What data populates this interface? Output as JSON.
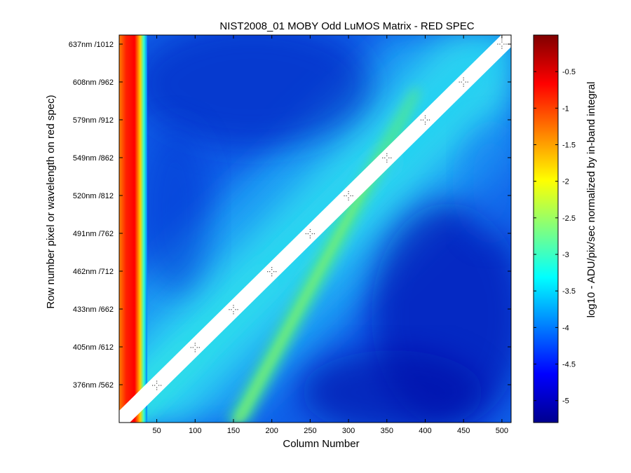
{
  "chart_data": {
    "type": "heatmap",
    "title": "NIST2008_01  MOBY Odd LuMOS Matrix - RED SPEC",
    "xlabel": "Column Number",
    "ylabel": "Row number pixel or wavelength on red spec)",
    "colorbar_label": "log10 - ADU/pix/sec normalized by in-band integral",
    "colormap": "jet",
    "xlim": [
      1,
      512
    ],
    "ylim": [
      512,
      1024
    ],
    "clim": [
      -5.3,
      0
    ],
    "x_ticks": [
      50,
      100,
      150,
      200,
      250,
      300,
      350,
      400,
      450,
      500
    ],
    "y_ticks": [
      {
        "value": 562,
        "label": "376nm /562"
      },
      {
        "value": 612,
        "label": "405nm /612"
      },
      {
        "value": 662,
        "label": "433nm /662"
      },
      {
        "value": 712,
        "label": "462nm /712"
      },
      {
        "value": 762,
        "label": "491nm /762"
      },
      {
        "value": 812,
        "label": "520nm /812"
      },
      {
        "value": 862,
        "label": "549nm /862"
      },
      {
        "value": 912,
        "label": "579nm /912"
      },
      {
        "value": 962,
        "label": "608nm /962"
      },
      {
        "value": 1012,
        "label": "637nm /1012"
      }
    ],
    "colorbar_ticks": [
      -0.5,
      -1,
      -1.5,
      -2,
      -2.5,
      -3,
      -3.5,
      -4,
      -4.5,
      -5
    ],
    "features": {
      "main_diagonal": "in-band region (white, masked) from column 1/row 512 to column 512/row 1024",
      "secondary_band": "green stray-light band from column 150/row 512 to column 345/row 880",
      "left_edge": "high values near column 1-20 (about -0.2 to -1.2)",
      "background": "approximately -3 to -5"
    }
  }
}
